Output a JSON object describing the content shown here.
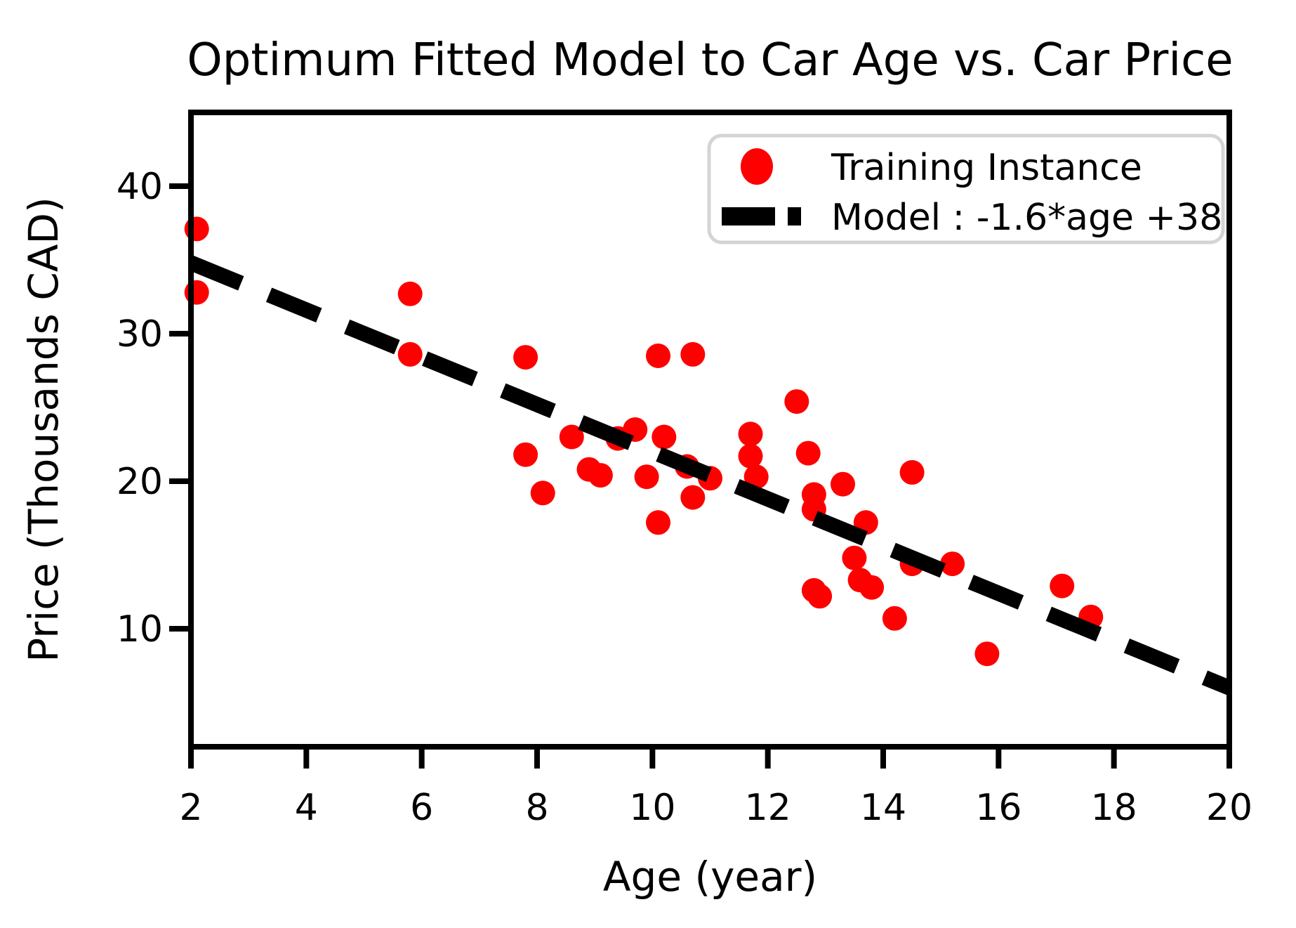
{
  "chart_data": {
    "type": "scatter",
    "title": "Optimum Fitted Model to Car Age vs. Car Price",
    "xlabel": "Age (year)",
    "ylabel": "Price (Thousands CAD)",
    "xlim": [
      2,
      20
    ],
    "ylim": [
      2,
      45
    ],
    "x_ticks": [
      2,
      4,
      6,
      8,
      10,
      12,
      14,
      16,
      18,
      20
    ],
    "y_ticks": [
      10,
      20,
      30,
      40
    ],
    "grid": "off",
    "legend_position": "top-right",
    "colors": {
      "scatter": "#ff0000",
      "model_line": "#000000",
      "legend_border": "#d4d4d4"
    },
    "legend": {
      "entries": [
        {
          "label": "Training Instance",
          "marker": "red-dot"
        },
        {
          "label": "Model : -1.6*age +38",
          "marker": "black-dashed-line"
        }
      ]
    },
    "series": [
      {
        "name": "Training Instance",
        "type": "scatter",
        "points": [
          [
            2.1,
            37.1
          ],
          [
            2.1,
            32.8
          ],
          [
            5.8,
            32.7
          ],
          [
            5.8,
            28.6
          ],
          [
            7.8,
            28.4
          ],
          [
            10.1,
            28.5
          ],
          [
            10.7,
            28.6
          ],
          [
            7.8,
            21.8
          ],
          [
            8.1,
            19.2
          ],
          [
            8.6,
            23.0
          ],
          [
            9.4,
            22.9
          ],
          [
            9.7,
            23.5
          ],
          [
            10.2,
            23.0
          ],
          [
            8.9,
            20.8
          ],
          [
            9.1,
            20.4
          ],
          [
            9.9,
            20.3
          ],
          [
            10.6,
            21.0
          ],
          [
            11.0,
            20.2
          ],
          [
            10.7,
            18.9
          ],
          [
            10.1,
            17.2
          ],
          [
            11.7,
            23.2
          ],
          [
            11.7,
            21.7
          ],
          [
            11.8,
            20.3
          ],
          [
            12.5,
            25.4
          ],
          [
            12.7,
            21.9
          ],
          [
            13.3,
            19.8
          ],
          [
            12.8,
            19.1
          ],
          [
            12.8,
            18.1
          ],
          [
            13.7,
            17.2
          ],
          [
            14.5,
            20.6
          ],
          [
            13.5,
            14.8
          ],
          [
            14.5,
            14.4
          ],
          [
            15.2,
            14.4
          ],
          [
            12.8,
            12.6
          ],
          [
            12.9,
            12.2
          ],
          [
            13.6,
            13.3
          ],
          [
            13.8,
            12.8
          ],
          [
            14.2,
            10.7
          ],
          [
            15.8,
            8.3
          ],
          [
            17.1,
            12.9
          ],
          [
            17.6,
            10.8
          ]
        ]
      },
      {
        "name": "Model : -1.6*age +38",
        "type": "line",
        "style": "dashed",
        "slope": -1.6,
        "intercept": 38,
        "x_range": [
          2,
          20
        ]
      }
    ]
  }
}
